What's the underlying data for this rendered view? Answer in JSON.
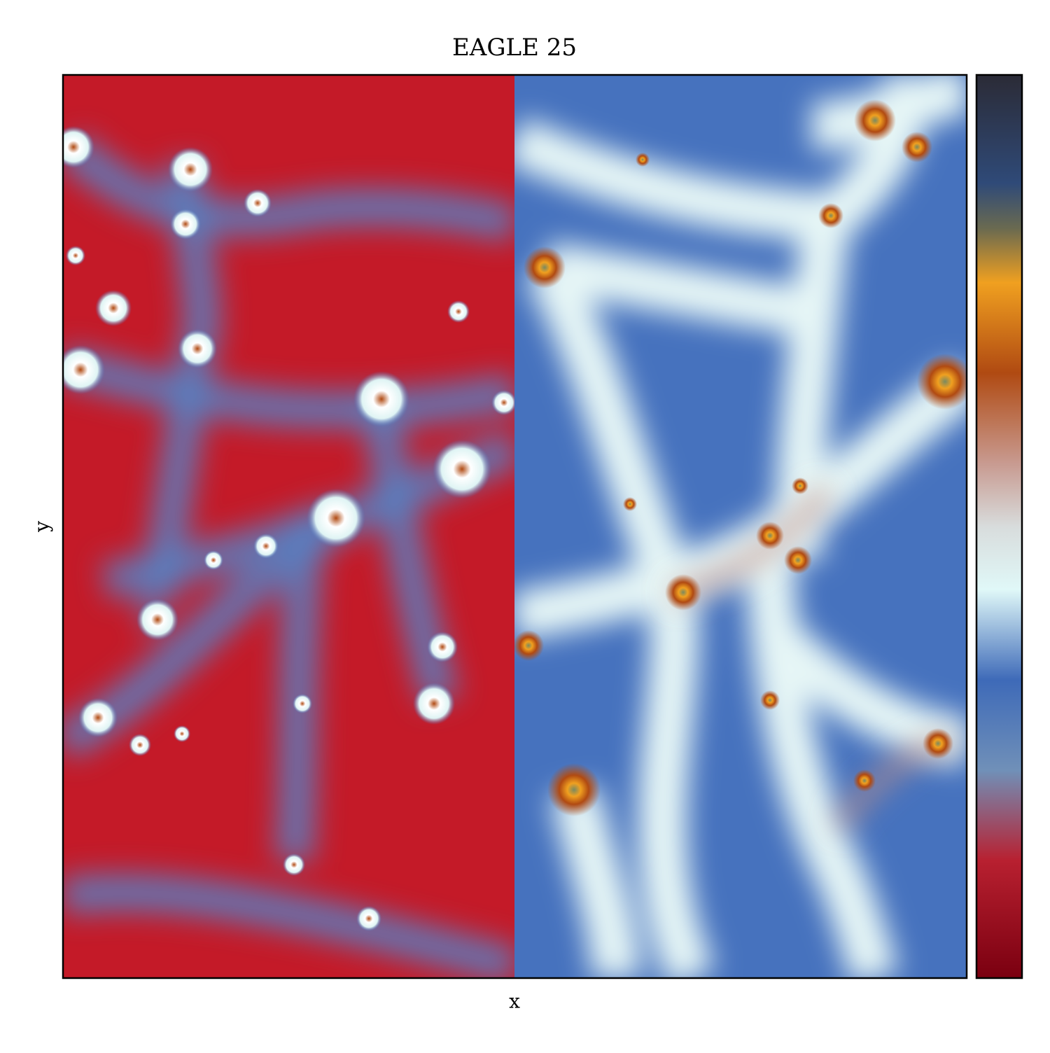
{
  "chart_data": {
    "type": "image",
    "title": "EAGLE 25",
    "xlabel": "x",
    "ylabel": "y"
  }
}
